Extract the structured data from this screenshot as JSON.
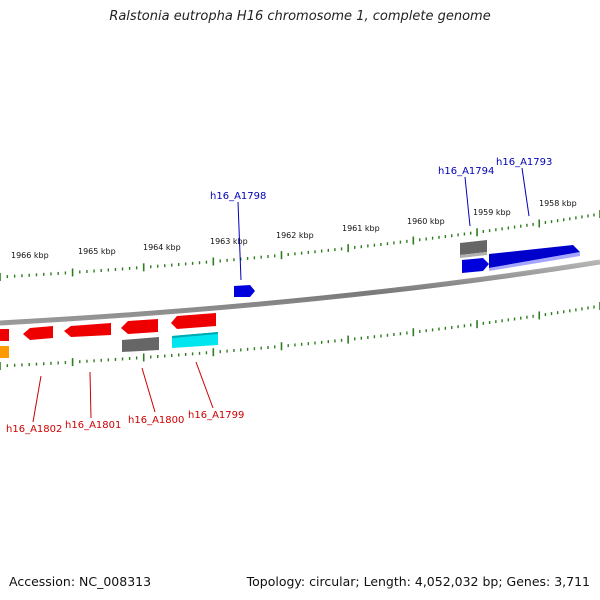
{
  "title": "Ralstonia eutropha H16 chromosome 1, complete genome",
  "footer": {
    "accession": "Accession: NC_008313",
    "topology": "Topology: circular; Length: 4,052,032 bp; Genes: 3,711"
  },
  "colors": {
    "backbone": "#888888",
    "tick": "#2e7d1e",
    "red_gene": "#ee0000",
    "blue_gene": "#0000dd",
    "gray_gene": "#666666",
    "cyan_gene": "#00e5ee",
    "orange_gene": "#ff9900",
    "label_forward": "#0000bb",
    "label_reverse": "#cc0000"
  },
  "ruler": {
    "outer_labels": [
      "1966 kbp",
      "1965 kbp",
      "1964 kbp",
      "1963 kbp",
      "1962 kbp",
      "1961 kbp",
      "1960 kbp",
      "1959 kbp",
      "1958 kbp"
    ]
  },
  "genes": [
    {
      "id": "h16_A1793",
      "strand": "forward",
      "color": "blue"
    },
    {
      "id": "h16_A1794",
      "strand": "forward",
      "color": "gray"
    },
    {
      "id": "h16_A1798",
      "strand": "forward",
      "color": "blue"
    },
    {
      "id": "h16_A1799",
      "strand": "reverse",
      "color": "cyan"
    },
    {
      "id": "h16_A1800",
      "strand": "reverse",
      "color": "gray"
    },
    {
      "id": "h16_A1801",
      "strand": "reverse",
      "color": "red"
    },
    {
      "id": "h16_A1802",
      "strand": "reverse",
      "color": "red"
    }
  ]
}
